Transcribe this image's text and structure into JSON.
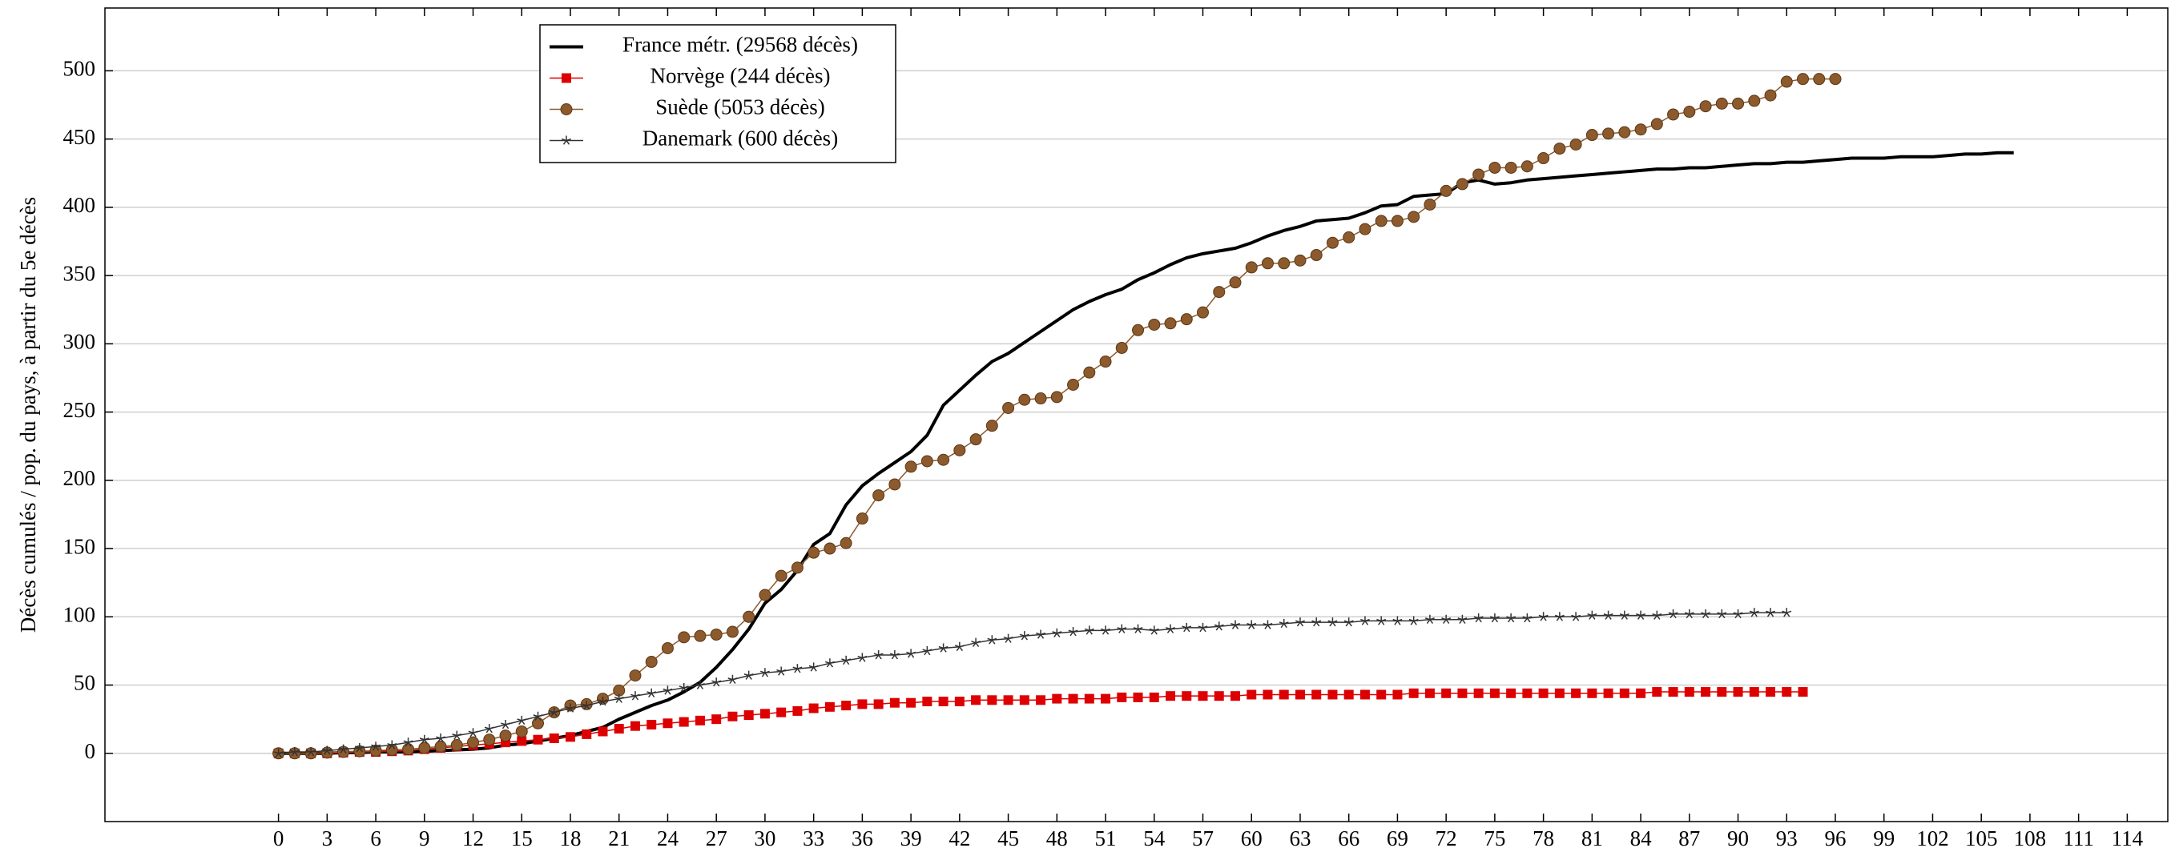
{
  "chart_data": {
    "type": "line",
    "y_label": "Décès cumulés / pop. du pays, à partir du 5e décès",
    "x": [
      0,
      1,
      2,
      3,
      4,
      5,
      6,
      7,
      8,
      9,
      10,
      11,
      12,
      13,
      14,
      15,
      16,
      17,
      18,
      19,
      20,
      21,
      22,
      23,
      24,
      25,
      26,
      27,
      28,
      29,
      30,
      31,
      32,
      33,
      34,
      35,
      36,
      37,
      38,
      39,
      40,
      41,
      42,
      43,
      44,
      45,
      46,
      47,
      48,
      49,
      50,
      51,
      52,
      53,
      54,
      55,
      56,
      57,
      58,
      59,
      60,
      61,
      62,
      63,
      64,
      65,
      66,
      67,
      68,
      69,
      70,
      71,
      72,
      73,
      74,
      75,
      76,
      77,
      78,
      79,
      80,
      81,
      82,
      83,
      84,
      85,
      86,
      87,
      88,
      89,
      90,
      91,
      92,
      93,
      94,
      95,
      96,
      97,
      98,
      99,
      100,
      101,
      102,
      103,
      104,
      105,
      106,
      107
    ],
    "series": [
      {
        "name": "France métr. (29568 décès)",
        "color": "#000000",
        "marker": "none",
        "values": [
          0,
          0,
          0,
          0,
          0.5,
          0.5,
          1,
          1,
          1,
          1.5,
          2,
          2.5,
          3,
          4,
          6,
          7,
          9,
          11,
          13,
          16,
          19,
          25,
          30,
          35,
          39,
          45,
          52,
          63,
          76,
          91,
          110,
          120,
          134,
          153,
          161,
          182,
          196,
          205,
          213,
          221,
          233,
          255,
          266,
          277,
          287,
          293,
          301,
          309,
          317,
          325,
          331,
          336,
          340,
          347,
          352,
          358,
          363,
          366,
          368,
          370,
          374,
          379,
          383,
          386,
          390,
          391,
          392,
          396,
          401,
          402,
          408,
          409,
          410,
          418,
          420,
          417,
          418,
          420,
          421,
          422,
          423,
          424,
          425,
          426,
          427,
          428,
          428,
          429,
          429,
          430,
          431,
          432,
          432,
          433,
          433,
          434,
          435,
          436,
          436,
          436,
          437,
          437,
          437,
          438,
          439,
          439,
          440,
          440
        ]
      },
      {
        "name": "Norvège (244 décès)",
        "color": "#dd0000",
        "marker": "square",
        "values": [
          0,
          0,
          0,
          0,
          0.5,
          1,
          1,
          1.5,
          2,
          3,
          4,
          5,
          6,
          7,
          8,
          9,
          10,
          11,
          12,
          14,
          16,
          18,
          20,
          21,
          22,
          23,
          24,
          25,
          27,
          28,
          29,
          30,
          31,
          33,
          34,
          35,
          36,
          36,
          37,
          37,
          38,
          38,
          38,
          39,
          39,
          39,
          39,
          39,
          40,
          40,
          40,
          40,
          41,
          41,
          41,
          42,
          42,
          42,
          42,
          42,
          43,
          43,
          43,
          43,
          43,
          43,
          43,
          43,
          43,
          43,
          44,
          44,
          44,
          44,
          44,
          44,
          44,
          44,
          44,
          44,
          44,
          44,
          44,
          44,
          44,
          45,
          45,
          45,
          45,
          45,
          45,
          45,
          45,
          45,
          45,
          null,
          null,
          null,
          null,
          null,
          null,
          null,
          null,
          null,
          null,
          null,
          null,
          null
        ]
      },
      {
        "name": "Suède (5053 décès)",
        "color": "#8c5a2c",
        "marker": "circle",
        "values": [
          0,
          0,
          0,
          0.5,
          1,
          1.5,
          2,
          2.5,
          3,
          4,
          5,
          6,
          8,
          10,
          13,
          16,
          22,
          30,
          35,
          36,
          40,
          46,
          57,
          67,
          77,
          85,
          86,
          87,
          89,
          100,
          116,
          130,
          136,
          147,
          150,
          154,
          172,
          189,
          197,
          210,
          214,
          215,
          222,
          230,
          240,
          253,
          259,
          260,
          261,
          270,
          279,
          287,
          297,
          310,
          314,
          315,
          318,
          323,
          338,
          345,
          356,
          359,
          359,
          361,
          365,
          374,
          378,
          384,
          390,
          390,
          393,
          402,
          412,
          417,
          424,
          429,
          429,
          430,
          436,
          443,
          446,
          453,
          454,
          455,
          457,
          461,
          468,
          470,
          474,
          476,
          476,
          478,
          482,
          492,
          494,
          494,
          494,
          null,
          null,
          null,
          null,
          null,
          null,
          null,
          null,
          null,
          null,
          null
        ]
      },
      {
        "name": "Danemark (600 décès)",
        "color": "#333333",
        "marker": "star",
        "values": [
          0,
          1,
          1,
          2,
          3,
          4,
          5,
          6,
          8,
          10,
          11,
          13,
          15,
          18,
          21,
          24,
          27,
          30,
          33,
          35,
          38,
          40,
          42,
          44,
          46,
          48,
          50,
          52,
          54,
          57,
          59,
          60,
          62,
          63,
          66,
          68,
          70,
          72,
          72,
          73,
          75,
          77,
          78,
          81,
          83,
          84,
          86,
          87,
          88,
          89,
          90,
          90,
          91,
          91,
          90,
          91,
          92,
          92,
          93,
          94,
          94,
          94,
          95,
          96,
          96,
          96,
          96,
          97,
          97,
          97,
          97,
          98,
          98,
          98,
          99,
          99,
          99,
          99,
          100,
          100,
          100,
          101,
          101,
          101,
          101,
          101,
          102,
          102,
          102,
          102,
          102,
          103,
          103,
          103,
          null,
          null,
          null,
          null,
          null,
          null,
          null,
          null,
          null,
          null,
          null,
          null,
          null,
          null
        ]
      }
    ],
    "xlim": [
      -10.7,
      116.5
    ],
    "xticks": [
      0,
      3,
      6,
      9,
      12,
      15,
      18,
      21,
      24,
      27,
      30,
      33,
      36,
      39,
      42,
      45,
      48,
      51,
      54,
      57,
      60,
      63,
      66,
      69,
      72,
      75,
      78,
      81,
      84,
      87,
      90,
      93,
      96,
      99,
      102,
      105,
      108,
      111,
      114
    ],
    "ylim": [
      -50,
      546
    ],
    "yticks": [
      0,
      50,
      100,
      150,
      200,
      250,
      300,
      350,
      400,
      450,
      500
    ],
    "grid": true,
    "legend": "upper-left"
  }
}
